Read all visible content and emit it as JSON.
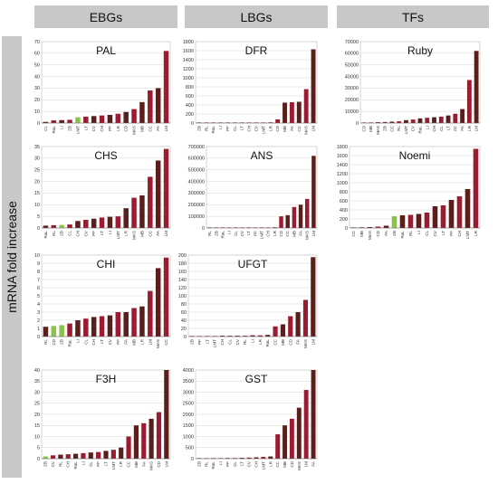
{
  "headers": [
    "EBGs",
    "LBGs",
    "TFs"
  ],
  "ylabel": "mRNA fold increase",
  "colors": {
    "bar_red": "#9b1b30",
    "bar_dark": "#5a1f1a",
    "bar_green": "#8bc34a",
    "bar_pink": "#f3c3cf"
  },
  "chart_data": [
    {
      "type": "bar",
      "title": "PAL",
      "ylim": [
        0,
        70
      ],
      "yticks": [
        0,
        10,
        20,
        30,
        40,
        50,
        60,
        70
      ],
      "categories": [
        "CL",
        "RaL",
        "LI",
        "ZB",
        "LMT",
        "LT",
        "CV",
        "CH",
        "PF",
        "LR",
        "CD",
        "MAS",
        "MB",
        "CC",
        "FA",
        "LM"
      ],
      "values": [
        1,
        2.3,
        2.5,
        2.8,
        5,
        5.5,
        6,
        6.5,
        7,
        8,
        9.5,
        12,
        18,
        28,
        30,
        62
      ],
      "highlight": [
        "LMT"
      ]
    },
    {
      "type": "bar",
      "title": "DFR",
      "ylim": [
        0,
        1800
      ],
      "yticks": [
        0,
        200,
        400,
        600,
        800,
        1000,
        1200,
        1400,
        1600,
        1800
      ],
      "categories": [
        "ZB",
        "RL",
        "RaL",
        "LI",
        "PF",
        "CL",
        "LT",
        "CH",
        "CV",
        "LMT",
        "LR",
        "CD",
        "MB",
        "FA",
        "CC",
        "MAS",
        "LM"
      ],
      "values": [
        1,
        1,
        2,
        2,
        3,
        3,
        4,
        5,
        6,
        8,
        15,
        80,
        450,
        460,
        470,
        750,
        1630
      ],
      "highlight": []
    },
    {
      "type": "bar",
      "title": "Ruby",
      "ylim": [
        0,
        70000
      ],
      "yticks": [
        0,
        10000,
        20000,
        30000,
        40000,
        50000,
        60000,
        70000
      ],
      "categories": [
        "CD",
        "MB",
        "MAS",
        "ZB",
        "CC",
        "RL",
        "LMT",
        "CV",
        "RaL",
        "LI",
        "CH",
        "CL",
        "LT",
        "PF",
        "FA",
        "LR",
        "LM"
      ],
      "values": [
        300,
        500,
        700,
        900,
        1200,
        1500,
        2500,
        3000,
        4000,
        4500,
        5000,
        5500,
        6500,
        8000,
        12000,
        37000,
        62000
      ],
      "highlight": []
    },
    {
      "type": "bar",
      "title": "CHS",
      "ylim": [
        0,
        35
      ],
      "yticks": [
        0,
        5,
        10,
        15,
        20,
        25,
        30,
        35
      ],
      "categories": [
        "RaL",
        "RL",
        "ZB",
        "CL",
        "CH",
        "CV",
        "PF",
        "LT",
        "LI",
        "LMT",
        "LR",
        "MAS",
        "MB",
        "CC",
        "FA",
        "LM"
      ],
      "values": [
        1,
        1.2,
        1.3,
        1.5,
        3,
        3.5,
        4,
        4.5,
        4.8,
        5,
        8.5,
        13,
        14,
        22,
        29,
        34
      ],
      "highlight": [
        "ZB"
      ]
    },
    {
      "type": "bar",
      "title": "ANS",
      "ylim": [
        0,
        700000
      ],
      "yticks": [
        0,
        100000,
        200000,
        300000,
        400000,
        500000,
        600000,
        700000
      ],
      "categories": [
        "RL",
        "ZB",
        "RaL",
        "LI",
        "CL",
        "CV",
        "LT",
        "PF",
        "LMT",
        "CH",
        "LR",
        "CD",
        "CC",
        "MB",
        "FA",
        "MAS",
        "LM"
      ],
      "values": [
        200,
        300,
        500,
        800,
        1000,
        1200,
        1500,
        2000,
        3000,
        4000,
        6000,
        100000,
        110000,
        180000,
        200000,
        250000,
        620000
      ],
      "highlight": []
    },
    {
      "type": "bar",
      "title": "Noemi",
      "ylim": [
        0,
        1800
      ],
      "yticks": [
        0,
        200,
        400,
        600,
        800,
        1000,
        1200,
        1400,
        1600,
        1800
      ],
      "categories": [
        "CC",
        "MB",
        "MAS",
        "CD",
        "FA",
        "ZB",
        "RaL",
        "RL",
        "LI",
        "CL",
        "CV",
        "LT",
        "PF",
        "CH",
        "LMT",
        "LR"
      ],
      "values": [
        10,
        15,
        20,
        30,
        50,
        260,
        280,
        290,
        310,
        340,
        480,
        500,
        620,
        700,
        860,
        1750
      ],
      "highlight": [
        "ZB"
      ]
    },
    {
      "type": "bar",
      "title": "CHI",
      "ylim": [
        0,
        10
      ],
      "yticks": [
        0,
        1,
        2,
        3,
        4,
        5,
        6,
        7,
        8,
        9,
        10
      ],
      "categories": [
        "RL",
        "CD",
        "ZB",
        "RaL",
        "LI",
        "CL",
        "CH",
        "LT",
        "CV",
        "PF",
        "FA",
        "MB",
        "LR",
        "LM",
        "MAS",
        "CC"
      ],
      "values": [
        1.2,
        1.3,
        1.4,
        1.6,
        2,
        2.2,
        2.4,
        2.5,
        2.6,
        3,
        3,
        3.5,
        3.7,
        5.6,
        8.4,
        9.7
      ],
      "highlight": [
        "CD",
        "ZB"
      ]
    },
    {
      "type": "bar",
      "title": "UFGT",
      "ylim": [
        0,
        200
      ],
      "yticks": [
        0,
        20,
        40,
        60,
        80,
        100,
        120,
        140,
        160,
        180,
        200
      ],
      "categories": [
        "ZB",
        "PF",
        "LT",
        "LMT",
        "CH",
        "CL",
        "CV",
        "RL",
        "LI",
        "LR",
        "RaL",
        "CC",
        "MB",
        "CD",
        "FA",
        "MAS",
        "LM"
      ],
      "values": [
        1,
        1,
        1,
        1,
        2,
        2,
        2,
        2,
        3,
        3,
        4,
        25,
        30,
        50,
        60,
        90,
        195
      ],
      "highlight": []
    },
    {
      "type": "bar",
      "title": "F3H",
      "ylim": [
        0,
        40
      ],
      "yticks": [
        0,
        5,
        10,
        15,
        20,
        25,
        30,
        35,
        40
      ],
      "categories": [
        "ZB",
        "CV",
        "RL",
        "CH",
        "RaL",
        "LI",
        "CL",
        "PF",
        "LT",
        "LMT",
        "LR",
        "CC",
        "MB",
        "FA",
        "MAS",
        "CD",
        "LM"
      ],
      "values": [
        1,
        1.5,
        1.8,
        2,
        2.2,
        2.5,
        2.8,
        3,
        3.5,
        4,
        5,
        10,
        15,
        16,
        18,
        21,
        40
      ],
      "highlight": [
        "ZB"
      ]
    },
    {
      "type": "bar",
      "title": "GST",
      "ylim": [
        0,
        4000
      ],
      "yticks": [
        0,
        500,
        1000,
        1500,
        2000,
        2500,
        3000,
        3500,
        4000
      ],
      "categories": [
        "ZB",
        "RL",
        "RaL",
        "LI",
        "PF",
        "CL",
        "LT",
        "CV",
        "CH",
        "LMT",
        "LR",
        "CC",
        "MB",
        "CD",
        "MAS",
        "LM",
        "FA"
      ],
      "values": [
        10,
        10,
        20,
        20,
        30,
        30,
        40,
        50,
        60,
        80,
        100,
        1100,
        1500,
        1800,
        2300,
        3100,
        4000
      ],
      "highlight": []
    }
  ]
}
